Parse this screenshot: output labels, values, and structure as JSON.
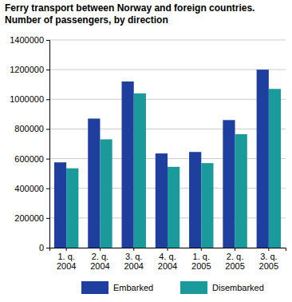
{
  "chart_data": {
    "type": "bar",
    "title": "Ferry transport between Norway and foreign countries.",
    "subtitle": "Number of passengers, by direction",
    "categories": [
      "1. q. 2004",
      "2. q. 2004",
      "3. q. 2004",
      "4. q. 2004",
      "1. q. 2005",
      "2. q. 2005",
      "3. q. 2005"
    ],
    "series": [
      {
        "name": "Embarked",
        "color": "#1f3f9f",
        "values": [
          575000,
          870000,
          1120000,
          635000,
          645000,
          860000,
          1200000
        ]
      },
      {
        "name": "Disembarked",
        "color": "#1a9a9a",
        "values": [
          535000,
          730000,
          1040000,
          545000,
          570000,
          765000,
          1070000
        ]
      }
    ],
    "ylim": [
      0,
      1400000
    ],
    "yticks": [
      0,
      200000,
      400000,
      600000,
      800000,
      1000000,
      1200000,
      1400000
    ],
    "grid": true,
    "legend": "bottom"
  }
}
